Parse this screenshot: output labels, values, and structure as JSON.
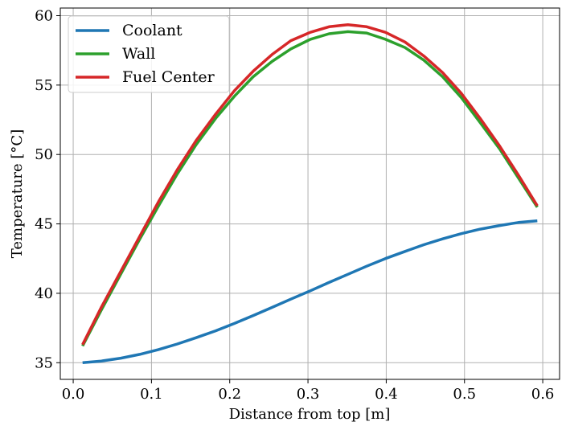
{
  "chart_data": {
    "type": "line",
    "title": "",
    "xlabel": "Distance from top [m]",
    "ylabel": "Temperature [°C]",
    "xlim": [
      -0.0165,
      0.6215
    ],
    "ylim": [
      33.8,
      60.55
    ],
    "xticks": [
      0.0,
      0.1,
      0.2,
      0.3,
      0.4,
      0.5,
      0.6
    ],
    "xtick_labels": [
      "0.0",
      "0.1",
      "0.2",
      "0.3",
      "0.4",
      "0.5",
      "0.6"
    ],
    "yticks": [
      35,
      40,
      45,
      50,
      55,
      60
    ],
    "ytick_labels": [
      "35",
      "40",
      "45",
      "50",
      "55",
      "60"
    ],
    "grid": true,
    "legend_position": "top-left",
    "x": [
      0.012,
      0.036,
      0.061,
      0.085,
      0.109,
      0.133,
      0.157,
      0.182,
      0.206,
      0.23,
      0.254,
      0.278,
      0.303,
      0.327,
      0.351,
      0.375,
      0.399,
      0.424,
      0.448,
      0.472,
      0.496,
      0.52,
      0.545,
      0.569,
      0.593
    ],
    "series": [
      {
        "name": "Coolant",
        "color": "#1f77b4",
        "values": [
          35.0,
          35.12,
          35.33,
          35.6,
          35.95,
          36.35,
          36.8,
          37.3,
          37.83,
          38.4,
          38.98,
          39.58,
          40.18,
          40.78,
          41.37,
          41.95,
          42.5,
          43.02,
          43.5,
          43.92,
          44.3,
          44.62,
          44.88,
          45.1,
          45.22
        ]
      },
      {
        "name": "Wall",
        "color": "#2ca02c",
        "values": [
          36.2,
          38.8,
          41.4,
          43.9,
          46.3,
          48.6,
          50.7,
          52.6,
          54.2,
          55.6,
          56.7,
          57.6,
          58.3,
          58.7,
          58.85,
          58.75,
          58.3,
          57.7,
          56.8,
          55.6,
          54.1,
          52.3,
          50.4,
          48.3,
          46.2
        ]
      },
      {
        "name": "Fuel Center",
        "color": "#d62728",
        "values": [
          36.3,
          39.0,
          41.6,
          44.1,
          46.6,
          48.9,
          51.0,
          52.9,
          54.6,
          56.0,
          57.2,
          58.2,
          58.8,
          59.2,
          59.35,
          59.2,
          58.8,
          58.1,
          57.1,
          55.9,
          54.4,
          52.6,
          50.6,
          48.5,
          46.3
        ]
      }
    ]
  }
}
